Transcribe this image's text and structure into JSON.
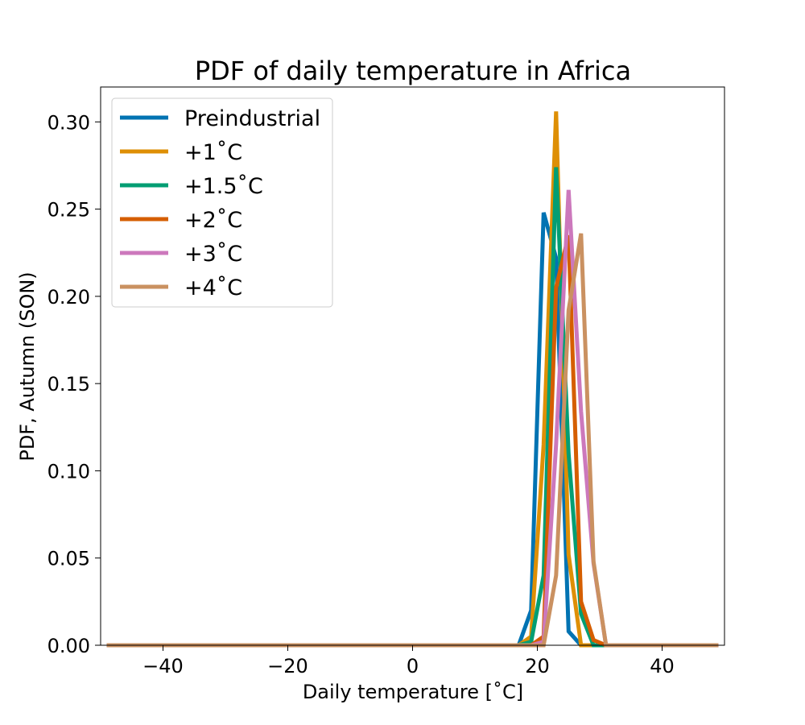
{
  "chart_data": {
    "type": "line",
    "title": "PDF of daily temperature in Africa",
    "xlabel": "Daily temperature [˚C]",
    "ylabel": "PDF, Autumn (SON)",
    "xlim": [
      -50,
      50
    ],
    "ylim": [
      0,
      0.32
    ],
    "xticks": [
      -40,
      -20,
      0,
      20,
      40
    ],
    "xtick_labels": [
      "−40",
      "−20",
      "0",
      "20",
      "40"
    ],
    "yticks": [
      0.0,
      0.05,
      0.1,
      0.15,
      0.2,
      0.25,
      0.3
    ],
    "ytick_labels": [
      "0.00",
      "0.05",
      "0.10",
      "0.15",
      "0.20",
      "0.25",
      "0.30"
    ],
    "grid": false,
    "legend_position": "upper-left",
    "series": [
      {
        "name": "Preindustrial",
        "color": "#0173b2",
        "points": [
          [
            -49,
            0
          ],
          [
            15,
            0
          ],
          [
            17,
            0.0
          ],
          [
            19,
            0.02
          ],
          [
            21,
            0.248
          ],
          [
            23,
            0.222
          ],
          [
            25,
            0.008
          ],
          [
            27,
            0.0
          ],
          [
            29,
            0
          ],
          [
            49,
            0
          ]
        ]
      },
      {
        "name": "+1˚C",
        "color": "#de8f05",
        "points": [
          [
            -49,
            0
          ],
          [
            17,
            0
          ],
          [
            19,
            0.005
          ],
          [
            21,
            0.115
          ],
          [
            23,
            0.306
          ],
          [
            25,
            0.052
          ],
          [
            27,
            0.0
          ],
          [
            29,
            0
          ],
          [
            49,
            0
          ]
        ]
      },
      {
        "name": "+1.5˚C",
        "color": "#029e73",
        "points": [
          [
            -49,
            0
          ],
          [
            17,
            0
          ],
          [
            19,
            0.002
          ],
          [
            21,
            0.04
          ],
          [
            23,
            0.274
          ],
          [
            25,
            0.11
          ],
          [
            27,
            0.018
          ],
          [
            29,
            0.0
          ],
          [
            49,
            0
          ]
        ]
      },
      {
        "name": "+2˚C",
        "color": "#d55e00",
        "points": [
          [
            -49,
            0
          ],
          [
            19,
            0
          ],
          [
            21,
            0.005
          ],
          [
            23,
            0.205
          ],
          [
            25,
            0.235
          ],
          [
            27,
            0.025
          ],
          [
            29,
            0.003
          ],
          [
            31,
            0
          ],
          [
            49,
            0
          ]
        ]
      },
      {
        "name": "+3˚C",
        "color": "#cc78bc",
        "points": [
          [
            -49,
            0
          ],
          [
            19,
            0
          ],
          [
            21,
            0.002
          ],
          [
            23,
            0.115
          ],
          [
            25,
            0.261
          ],
          [
            27,
            0.134
          ],
          [
            29,
            0.047
          ],
          [
            31,
            0.0
          ],
          [
            49,
            0
          ]
        ]
      },
      {
        "name": "+4˚C",
        "color": "#ca9161",
        "points": [
          [
            -49,
            0
          ],
          [
            19,
            0
          ],
          [
            21,
            0.0
          ],
          [
            23,
            0.04
          ],
          [
            25,
            0.192
          ],
          [
            27,
            0.236
          ],
          [
            29,
            0.048
          ],
          [
            31,
            0.0
          ],
          [
            49,
            0
          ]
        ]
      }
    ]
  }
}
